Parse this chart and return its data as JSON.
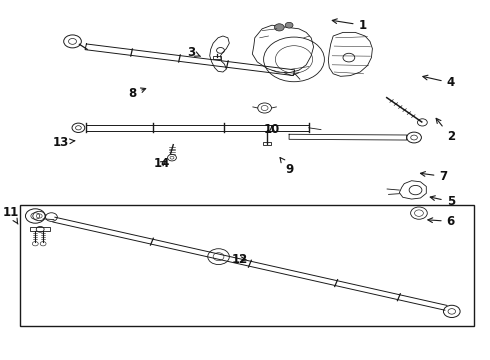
{
  "bg_color": "#ffffff",
  "line_color": "#1a1a1a",
  "lw_main": 1.0,
  "lw_thin": 0.6,
  "lw_thick": 1.5,
  "label_targets": {
    "1": [
      0.74,
      0.93,
      0.67,
      0.945
    ],
    "2": [
      0.92,
      0.62,
      0.885,
      0.68
    ],
    "3": [
      0.39,
      0.855,
      0.415,
      0.84
    ],
    "4": [
      0.92,
      0.77,
      0.855,
      0.79
    ],
    "5": [
      0.92,
      0.44,
      0.87,
      0.455
    ],
    "6": [
      0.92,
      0.385,
      0.865,
      0.39
    ],
    "7": [
      0.905,
      0.51,
      0.85,
      0.52
    ],
    "8": [
      0.27,
      0.74,
      0.305,
      0.758
    ],
    "9": [
      0.59,
      0.53,
      0.57,
      0.565
    ],
    "10": [
      0.555,
      0.64,
      0.555,
      0.66
    ],
    "11": [
      0.022,
      0.41,
      0.04,
      0.37
    ],
    "12": [
      0.49,
      0.28,
      0.51,
      0.278
    ],
    "13": [
      0.125,
      0.605,
      0.16,
      0.61
    ],
    "14": [
      0.33,
      0.545,
      0.345,
      0.558
    ]
  }
}
